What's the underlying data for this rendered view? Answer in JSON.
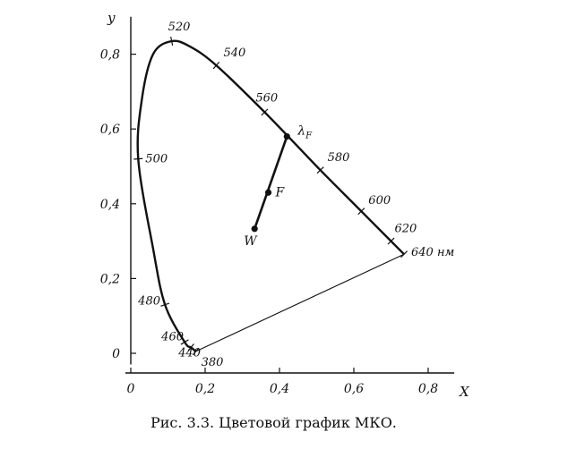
{
  "chart_data": {
    "type": "scatter",
    "title": "",
    "xlabel": "X",
    "ylabel": "y",
    "xlim": [
      0,
      0.87
    ],
    "ylim": [
      -0.03,
      0.9
    ],
    "x_ticks": [
      {
        "value": 0,
        "label": "0"
      },
      {
        "value": 0.2,
        "label": "0,2"
      },
      {
        "value": 0.4,
        "label": "0,4"
      },
      {
        "value": 0.6,
        "label": "0,6"
      },
      {
        "value": 0.8,
        "label": "0,8"
      }
    ],
    "y_ticks": [
      {
        "value": 0,
        "label": "0"
      },
      {
        "value": 0.2,
        "label": "0,2"
      },
      {
        "value": 0.4,
        "label": "0,4"
      },
      {
        "value": 0.6,
        "label": "0,6"
      },
      {
        "value": 0.8,
        "label": "0,8"
      }
    ],
    "spectral_locus": [
      {
        "x": 0.175,
        "y": 0.005,
        "label": "380"
      },
      {
        "x": 0.162,
        "y": 0.016,
        "label": "440"
      },
      {
        "x": 0.145,
        "y": 0.03,
        "label": "460"
      },
      {
        "x": 0.092,
        "y": 0.13,
        "label": "480"
      },
      {
        "x": 0.06,
        "y": 0.28
      },
      {
        "x": 0.02,
        "y": 0.52,
        "label": "500"
      },
      {
        "x": 0.03,
        "y": 0.68
      },
      {
        "x": 0.06,
        "y": 0.8
      },
      {
        "x": 0.11,
        "y": 0.835,
        "label": "520"
      },
      {
        "x": 0.16,
        "y": 0.82
      },
      {
        "x": 0.23,
        "y": 0.77,
        "label": "540"
      },
      {
        "x": 0.36,
        "y": 0.645,
        "label": "560"
      },
      {
        "x": 0.51,
        "y": 0.49,
        "label": "580"
      },
      {
        "x": 0.62,
        "y": 0.38,
        "label": "600"
      },
      {
        "x": 0.7,
        "y": 0.3,
        "label": "620"
      },
      {
        "x": 0.735,
        "y": 0.265,
        "label": "640 нм"
      }
    ],
    "purple_line": [
      {
        "x": 0.735,
        "y": 0.265
      },
      {
        "x": 0.175,
        "y": 0.005
      }
    ],
    "points": [
      {
        "name": "W",
        "x": 0.333,
        "y": 0.333
      },
      {
        "name": "F",
        "x": 0.37,
        "y": 0.43
      },
      {
        "name": "λF",
        "x": 0.42,
        "y": 0.58
      }
    ]
  },
  "caption": "Рис. 3.3. Цветовой график МКО.",
  "colors": {
    "ink": "#111111",
    "background": "#ffffff"
  }
}
